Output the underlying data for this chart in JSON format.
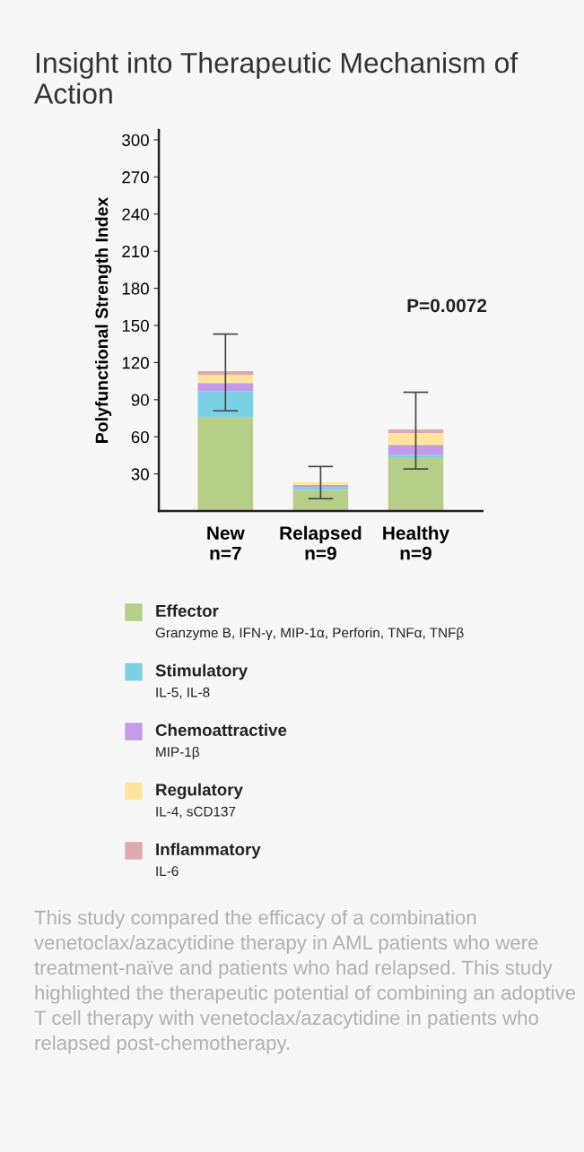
{
  "chart_data": {
    "type": "bar",
    "title": "Insight into Therapeutic Mechanism of Action",
    "ylabel": "Polyfunctional Strength Index",
    "categories": [
      "New\nn=7",
      "Relapsed\nn=9",
      "Healthy\nn=9"
    ],
    "stacked": true,
    "series": [
      {
        "name": "Effector",
        "color": "#b5cf88",
        "values": [
          76,
          17,
          43.5
        ]
      },
      {
        "name": "Stimulatory",
        "color": "#7bd0e3",
        "values": [
          21,
          2,
          2
        ]
      },
      {
        "name": "Chemoattractive",
        "color": "#c49be8",
        "values": [
          6.5,
          2,
          8
        ]
      },
      {
        "name": "Regulatory",
        "color": "#fde59d",
        "values": [
          6.5,
          2.4,
          9.5
        ]
      },
      {
        "name": "Inflammatory",
        "color": "#e0aaaa",
        "values": [
          3,
          0,
          3
        ],
        "errors": [
          [
            81,
            143
          ],
          [
            10,
            36
          ],
          [
            34,
            96
          ]
        ]
      }
    ],
    "ylim": [
      0,
      308
    ],
    "yticks": [
      30,
      60,
      90,
      120,
      150,
      180,
      210,
      240,
      270,
      300
    ],
    "legend": "bottom",
    "grid": false,
    "annotations": [
      "P=0.0072",
      "Granzyme B, IFN-γ, MIP-1α, Perforin, TNFα, TNFβ",
      "IL-5, IL-8",
      "MIP-1β",
      "IL-4, sCD137",
      "IL-6",
      "This study compared the efficacy of a combination venetoclax/azacytidine therapy in AML patients who were treatment-naïve and patients who had relapsed. This study highlighted the therapeutic potential of combining an adoptive T cell therapy with venetoclax/azacytidine in patients who relapsed post-chemotherapy."
    ]
  }
}
